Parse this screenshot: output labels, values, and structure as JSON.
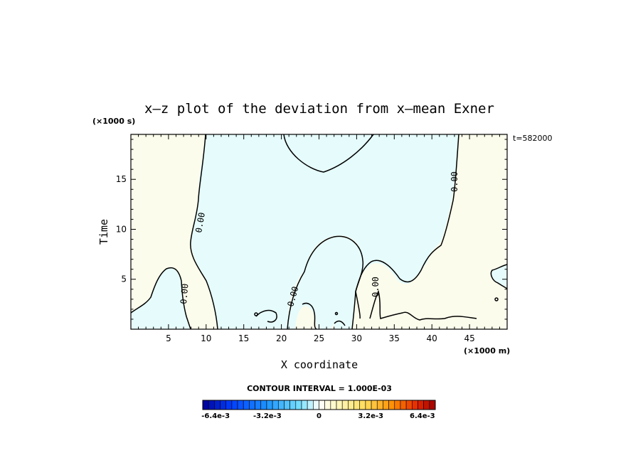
{
  "chart_data": {
    "type": "contour",
    "title": "x–z plot of the deviation from x–mean Exner",
    "time_label": "t=582000",
    "xlabel": "X coordinate",
    "ylabel": "Time",
    "x_unit": "(×1000 m)",
    "y_unit": "(×1000 s)",
    "xlim": [
      0,
      50
    ],
    "ylim": [
      0,
      19.5
    ],
    "x_ticks": [
      5,
      10,
      15,
      20,
      25,
      30,
      35,
      40,
      45
    ],
    "y_ticks": [
      5,
      10,
      15
    ],
    "contour_level": "0.00",
    "contour_interval_text": "CONTOUR INTERVAL = 1.000E-03",
    "colorbar": {
      "min": -0.0072,
      "max": 0.0072,
      "ticks": [
        "-6.4e-3",
        "-3.2e-3",
        "0",
        "3.2e-3",
        "6.4e-3"
      ],
      "tick_values": [
        -0.0064,
        -0.0032,
        0,
        0.0032,
        0.0064
      ]
    },
    "colors": {
      "negative_fill": "#e6fcfc",
      "positive_fill": "#fcfcec",
      "contour_line": "#000000"
    }
  }
}
